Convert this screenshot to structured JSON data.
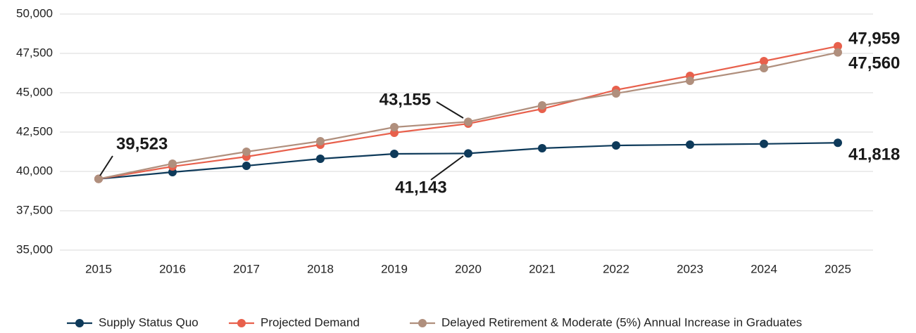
{
  "chart_data": {
    "type": "line",
    "categories": [
      "2015",
      "2016",
      "2017",
      "2018",
      "2019",
      "2020",
      "2021",
      "2022",
      "2023",
      "2024",
      "2025"
    ],
    "ylim": [
      35000,
      50000
    ],
    "yticks": [
      {
        "value": 35000,
        "label": "35,000"
      },
      {
        "value": 37500,
        "label": "37,500"
      },
      {
        "value": 40000,
        "label": "40,000"
      },
      {
        "value": 42500,
        "label": "42,500"
      },
      {
        "value": 45000,
        "label": "45,000"
      },
      {
        "value": 47500,
        "label": "47,500"
      },
      {
        "value": 50000,
        "label": "50,000"
      }
    ],
    "grid": true,
    "legend": "bottom",
    "series": [
      {
        "name": "Supply Status Quo",
        "color": "#0e3a5a",
        "values": [
          39523,
          39955,
          40357,
          40804,
          41116,
          41143,
          41473,
          41650,
          41700,
          41750,
          41818
        ],
        "value_labels": [
          "39,523",
          null,
          null,
          null,
          null,
          "41,143",
          null,
          null,
          null,
          null,
          "41,818"
        ]
      },
      {
        "name": "Projected Demand",
        "color": "#e8604c",
        "values": [
          39523,
          40312,
          40937,
          41696,
          42455,
          43036,
          43973,
          45179,
          46071,
          47009,
          47959
        ],
        "value_labels": [
          null,
          null,
          null,
          null,
          null,
          null,
          null,
          null,
          null,
          null,
          "47,959"
        ]
      },
      {
        "name": "Delayed Retirement & Moderate (5%) Annual Increase in Graduates",
        "color": "#b08f7d",
        "values": [
          39523,
          40491,
          41250,
          41920,
          42813,
          43155,
          44196,
          44955,
          45759,
          46563,
          47560
        ],
        "value_labels": [
          null,
          null,
          null,
          null,
          null,
          "43,155",
          null,
          null,
          null,
          null,
          "47,560"
        ]
      }
    ]
  }
}
